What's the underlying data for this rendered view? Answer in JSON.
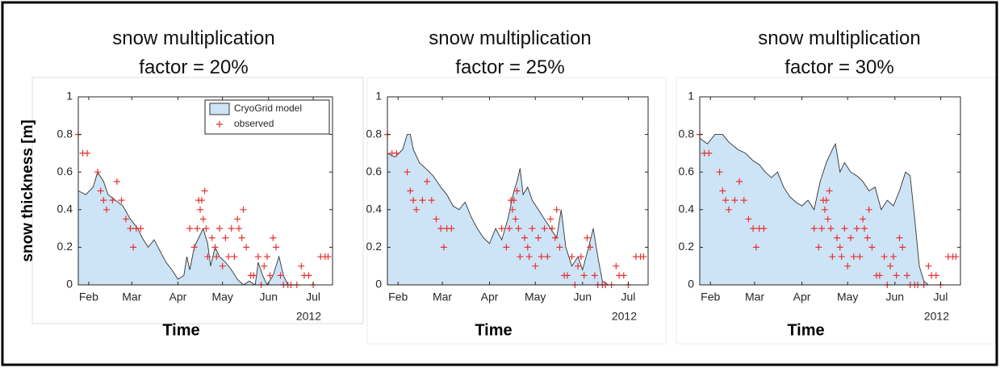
{
  "chart_data": [
    {
      "type": "area",
      "title": "snow multiplication\nfactor = 20%",
      "ylabel": "snow thickness [m]",
      "xlabel": "Time",
      "x_offset_label": "2012",
      "xlim": [
        25,
        196
      ],
      "ylim": [
        0,
        1
      ],
      "xticks": [
        {
          "value": 32,
          "label": "Feb"
        },
        {
          "value": 61,
          "label": "Mar"
        },
        {
          "value": 92,
          "label": "Apr"
        },
        {
          "value": 122,
          "label": "May"
        },
        {
          "value": 153,
          "label": "Jun"
        },
        {
          "value": 183,
          "label": "Jul"
        }
      ],
      "yticks": [
        0,
        0.2,
        0.4,
        0.6,
        0.8,
        1
      ],
      "legend": "upper right",
      "series": [
        {
          "name": "CryoGrid model",
          "type": "area",
          "color": "#cde4f7",
          "x": [
            25,
            30,
            35,
            38,
            42,
            45,
            50,
            55,
            60,
            65,
            68,
            72,
            76,
            80,
            84,
            88,
            92,
            96,
            98,
            100,
            103,
            106,
            109,
            112,
            114,
            117,
            120,
            124,
            128,
            132,
            136,
            140,
            144,
            146,
            149,
            152,
            156,
            160,
            163,
            166,
            196
          ],
          "values": [
            0.5,
            0.48,
            0.52,
            0.6,
            0.55,
            0.48,
            0.45,
            0.42,
            0.35,
            0.3,
            0.25,
            0.2,
            0.24,
            0.18,
            0.12,
            0.08,
            0.03,
            0.05,
            0.15,
            0.08,
            0.2,
            0.25,
            0.3,
            0.22,
            0.1,
            0.2,
            0.15,
            0.12,
            0.08,
            0.03,
            0,
            0.02,
            0,
            0.12,
            0.05,
            0,
            0.05,
            0.15,
            0.05,
            0,
            0
          ]
        },
        {
          "name": "observed",
          "type": "scatter",
          "color": "#e8312f",
          "x": [
            25,
            28,
            31,
            38,
            40,
            42,
            44,
            48,
            51,
            54,
            57,
            60,
            62,
            64,
            67,
            100,
            103,
            105,
            106,
            107,
            108,
            109,
            110,
            111,
            112,
            115,
            117,
            118,
            120,
            122,
            124,
            126,
            128,
            130,
            132,
            133,
            135,
            136,
            138,
            141,
            143,
            146,
            148,
            150,
            152,
            154,
            156,
            158,
            161,
            163,
            166,
            168,
            172,
            175,
            177,
            180,
            183,
            188,
            191,
            193
          ],
          "values": [
            0.8,
            0.7,
            0.7,
            0.6,
            0.5,
            0.45,
            0.4,
            0.45,
            0.55,
            0.45,
            0.35,
            0.3,
            0.2,
            0.3,
            0.3,
            0.3,
            0.2,
            0.3,
            0.45,
            0.4,
            0.45,
            0.35,
            0.5,
            0.3,
            0.15,
            0.25,
            0.2,
            0.15,
            0.3,
            0.1,
            0.25,
            0.15,
            0.3,
            0.15,
            0.35,
            0.3,
            0.25,
            0.4,
            0.2,
            0.05,
            0.05,
            0.15,
            0,
            0.1,
            0.15,
            0.05,
            0.25,
            0.2,
            0.05,
            0,
            0,
            0,
            0,
            0.1,
            0.05,
            0.05,
            0,
            0.15,
            0.15,
            0.15
          ]
        }
      ]
    },
    {
      "type": "area",
      "title": "snow multiplication\nfactor = 25%",
      "xlabel": "Time",
      "x_offset_label": "2012",
      "xlim": [
        25,
        196
      ],
      "ylim": [
        0,
        1
      ],
      "xticks": [
        {
          "value": 32,
          "label": "Feb"
        },
        {
          "value": 61,
          "label": "Mar"
        },
        {
          "value": 92,
          "label": "Apr"
        },
        {
          "value": 122,
          "label": "May"
        },
        {
          "value": 153,
          "label": "Jun"
        },
        {
          "value": 183,
          "label": "Jul"
        }
      ],
      "yticks": [
        0,
        0.2,
        0.4,
        0.6,
        0.8,
        1
      ],
      "series": [
        {
          "type": "area",
          "color": "#cde4f7",
          "x": [
            25,
            30,
            35,
            38,
            40,
            42,
            46,
            50,
            55,
            60,
            64,
            68,
            72,
            76,
            80,
            84,
            88,
            92,
            96,
            100,
            104,
            108,
            110,
            112,
            114,
            117,
            120,
            124,
            128,
            132,
            136,
            139,
            142,
            146,
            150,
            153,
            157,
            160,
            163,
            166,
            170,
            196
          ],
          "values": [
            0.7,
            0.68,
            0.72,
            0.8,
            0.8,
            0.72,
            0.65,
            0.62,
            0.58,
            0.52,
            0.48,
            0.42,
            0.4,
            0.44,
            0.36,
            0.3,
            0.25,
            0.22,
            0.3,
            0.24,
            0.35,
            0.5,
            0.55,
            0.62,
            0.48,
            0.52,
            0.45,
            0.4,
            0.35,
            0.3,
            0.25,
            0.4,
            0.2,
            0.1,
            0.15,
            0.08,
            0.2,
            0.3,
            0.15,
            0.02,
            0,
            0
          ]
        },
        {
          "type": "scatter",
          "color": "#e8312f",
          "x": [
            25,
            28,
            31,
            38,
            40,
            42,
            44,
            48,
            51,
            54,
            57,
            60,
            62,
            64,
            67,
            100,
            103,
            105,
            106,
            107,
            108,
            109,
            110,
            111,
            112,
            115,
            117,
            118,
            120,
            122,
            124,
            126,
            128,
            130,
            132,
            133,
            135,
            136,
            138,
            141,
            143,
            146,
            148,
            150,
            152,
            154,
            156,
            158,
            161,
            163,
            166,
            168,
            172,
            175,
            177,
            180,
            183,
            188,
            191,
            193
          ],
          "values": [
            0.8,
            0.7,
            0.7,
            0.6,
            0.5,
            0.45,
            0.4,
            0.45,
            0.55,
            0.45,
            0.35,
            0.3,
            0.2,
            0.3,
            0.3,
            0.3,
            0.2,
            0.3,
            0.45,
            0.4,
            0.45,
            0.35,
            0.5,
            0.3,
            0.15,
            0.25,
            0.2,
            0.15,
            0.3,
            0.1,
            0.25,
            0.15,
            0.3,
            0.15,
            0.35,
            0.3,
            0.25,
            0.4,
            0.2,
            0.05,
            0.05,
            0.15,
            0,
            0.1,
            0.15,
            0.05,
            0.25,
            0.2,
            0.05,
            0,
            0,
            0,
            0,
            0.1,
            0.05,
            0.05,
            0,
            0.15,
            0.15,
            0.15
          ]
        }
      ]
    },
    {
      "type": "area",
      "title": "snow multiplication\nfactor = 30%",
      "xlabel": "Time",
      "x_offset_label": "2012",
      "xlim": [
        25,
        196
      ],
      "ylim": [
        0,
        1
      ],
      "xticks": [
        {
          "value": 32,
          "label": "Feb"
        },
        {
          "value": 61,
          "label": "Mar"
        },
        {
          "value": 92,
          "label": "Apr"
        },
        {
          "value": 122,
          "label": "May"
        },
        {
          "value": 153,
          "label": "Jun"
        },
        {
          "value": 183,
          "label": "Jul"
        }
      ],
      "yticks": [
        0,
        0.2,
        0.4,
        0.6,
        0.8,
        1
      ],
      "series": [
        {
          "type": "area",
          "color": "#cde4f7",
          "x": [
            25,
            30,
            35,
            40,
            44,
            50,
            55,
            60,
            64,
            68,
            72,
            76,
            80,
            84,
            88,
            92,
            96,
            100,
            104,
            108,
            112,
            114,
            117,
            120,
            124,
            128,
            132,
            136,
            140,
            144,
            148,
            152,
            156,
            160,
            163,
            166,
            169,
            172,
            175,
            196
          ],
          "values": [
            0.78,
            0.75,
            0.8,
            0.8,
            0.76,
            0.72,
            0.7,
            0.66,
            0.64,
            0.6,
            0.57,
            0.6,
            0.52,
            0.47,
            0.44,
            0.42,
            0.45,
            0.4,
            0.55,
            0.65,
            0.72,
            0.75,
            0.6,
            0.65,
            0.6,
            0.58,
            0.55,
            0.5,
            0.52,
            0.4,
            0.45,
            0.42,
            0.5,
            0.6,
            0.58,
            0.35,
            0.1,
            0.02,
            0,
            0
          ]
        },
        {
          "type": "scatter",
          "color": "#e8312f",
          "x": [
            25,
            28,
            31,
            38,
            40,
            42,
            44,
            48,
            51,
            54,
            57,
            60,
            62,
            64,
            67,
            100,
            103,
            105,
            106,
            107,
            108,
            109,
            110,
            111,
            112,
            115,
            117,
            118,
            120,
            122,
            124,
            126,
            128,
            130,
            132,
            133,
            135,
            136,
            138,
            141,
            143,
            146,
            148,
            150,
            152,
            154,
            156,
            158,
            161,
            163,
            166,
            168,
            172,
            175,
            177,
            180,
            183,
            188,
            191,
            193
          ],
          "values": [
            0.8,
            0.7,
            0.7,
            0.6,
            0.5,
            0.45,
            0.4,
            0.45,
            0.55,
            0.45,
            0.35,
            0.3,
            0.2,
            0.3,
            0.3,
            0.3,
            0.2,
            0.3,
            0.45,
            0.4,
            0.45,
            0.35,
            0.5,
            0.3,
            0.15,
            0.25,
            0.2,
            0.15,
            0.3,
            0.1,
            0.25,
            0.15,
            0.3,
            0.15,
            0.35,
            0.3,
            0.25,
            0.4,
            0.2,
            0.05,
            0.05,
            0.15,
            0,
            0.1,
            0.15,
            0.05,
            0.25,
            0.2,
            0.05,
            0,
            0,
            0,
            0,
            0.1,
            0.05,
            0.05,
            0,
            0.15,
            0.15,
            0.15
          ]
        }
      ]
    }
  ]
}
